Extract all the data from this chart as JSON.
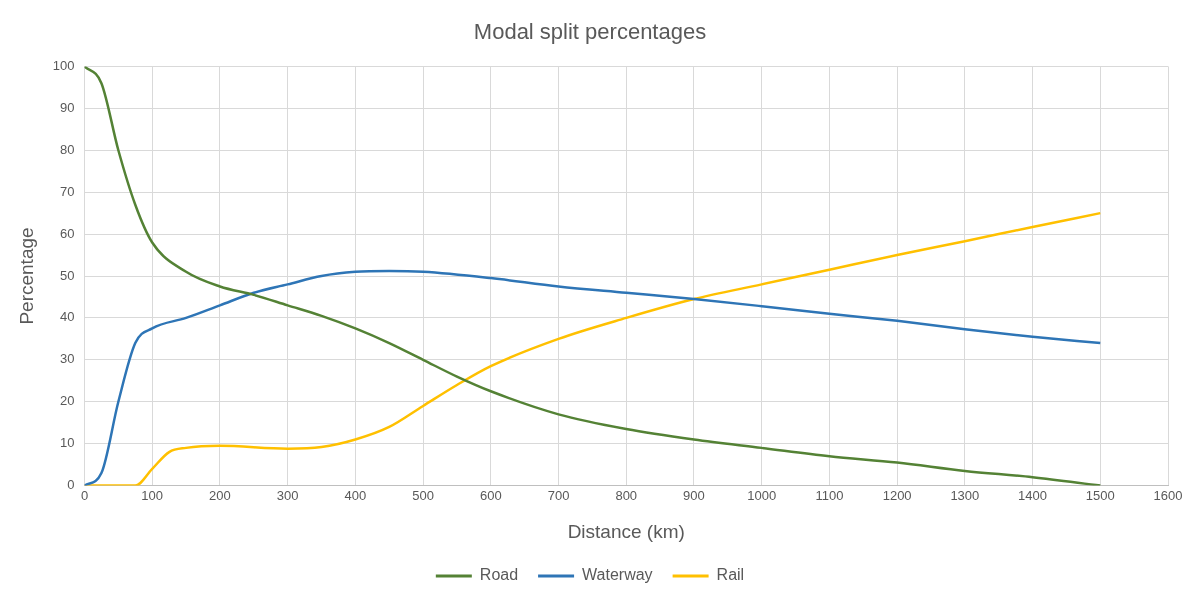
{
  "chart_data": {
    "type": "line",
    "title": "Modal split percentages",
    "xlabel": "Distance (km)",
    "ylabel": "Percentage",
    "xlim": [
      0,
      1600
    ],
    "xticks": [
      0,
      100,
      200,
      300,
      400,
      500,
      600,
      700,
      800,
      900,
      1000,
      1100,
      1200,
      1300,
      1400,
      1500,
      1600
    ],
    "ylim": [
      0,
      100
    ],
    "yticks": [
      0,
      10,
      20,
      30,
      40,
      50,
      60,
      70,
      80,
      90,
      100
    ],
    "grid": true,
    "legend": "bottom",
    "marker": "none",
    "line_style": "solid",
    "series": [
      {
        "name": "Road",
        "color": "#548235",
        "x": [
          0,
          25,
          50,
          75,
          100,
          150,
          200,
          250,
          300,
          350,
          400,
          450,
          500,
          550,
          600,
          700,
          800,
          900,
          1000,
          1100,
          1200,
          1300,
          1400,
          1500
        ],
        "values": [
          100,
          96,
          80,
          67,
          58,
          51,
          47.5,
          45.5,
          43,
          40.5,
          37.5,
          34,
          30,
          26,
          22.5,
          17,
          13.5,
          11,
          9,
          7,
          5.5,
          3.5,
          2,
          0
        ]
      },
      {
        "name": "Waterway",
        "color": "#2e75b6",
        "x": [
          0,
          25,
          50,
          75,
          100,
          150,
          200,
          250,
          300,
          350,
          400,
          450,
          500,
          600,
          700,
          800,
          900,
          1000,
          1100,
          1200,
          1300,
          1400,
          1500
        ],
        "values": [
          0,
          3,
          20,
          34,
          37.5,
          40,
          43,
          46,
          48,
          50,
          51,
          51.2,
          51,
          49.5,
          47.5,
          46,
          44.5,
          42.8,
          41,
          39.3,
          37.3,
          35.5,
          34
        ]
      },
      {
        "name": "Rail",
        "color": "#ffc000",
        "x": [
          0,
          50,
          75,
          100,
          125,
          150,
          200,
          300,
          350,
          400,
          450,
          500,
          550,
          600,
          700,
          800,
          900,
          1000,
          1100,
          1200,
          1300,
          1400,
          1500
        ],
        "values": [
          0,
          0,
          0,
          4,
          8,
          9,
          9.5,
          8.8,
          9.2,
          11,
          14,
          19,
          24,
          28.5,
          35,
          40,
          44.5,
          48,
          51.5,
          55,
          58.3,
          61.7,
          65
        ]
      }
    ]
  }
}
